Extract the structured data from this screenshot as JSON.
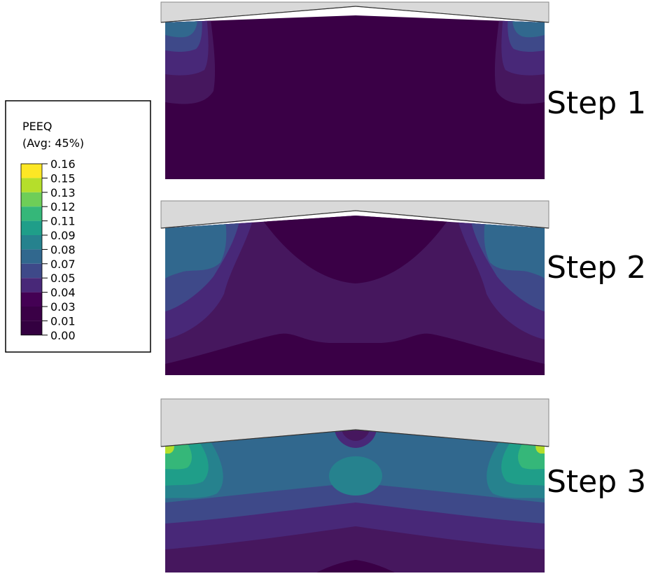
{
  "legend": {
    "title": "PEEQ",
    "subtitle": "(Avg: 45%)",
    "ticks": [
      "0.16",
      "0.15",
      "0.13",
      "0.12",
      "0.11",
      "0.09",
      "0.08",
      "0.07",
      "0.05",
      "0.04",
      "0.03",
      "0.01",
      "0.00"
    ],
    "colors": [
      "#FDE725",
      "#B5DE2B",
      "#6ECE58",
      "#35B779",
      "#1F9E89",
      "#26828E",
      "#31688E",
      "#3E4989",
      "#482878",
      "#440154",
      "#3A0046",
      "#330040"
    ]
  },
  "colors": {
    "tool": "#D9D9D9",
    "tool_edge": "#888888",
    "c0": "#3A0046",
    "c1": "#46175E",
    "c2": "#482878",
    "c3": "#3E4989",
    "c4": "#31688E",
    "c5": "#26828E",
    "c6": "#1F9E89",
    "c7": "#35B779",
    "c8": "#6ECE58",
    "c9": "#B5DE2B",
    "c10": "#FDE725"
  },
  "panels": [
    {
      "label": "Step 1"
    },
    {
      "label": "Step 2"
    },
    {
      "label": "Step 3"
    }
  ]
}
